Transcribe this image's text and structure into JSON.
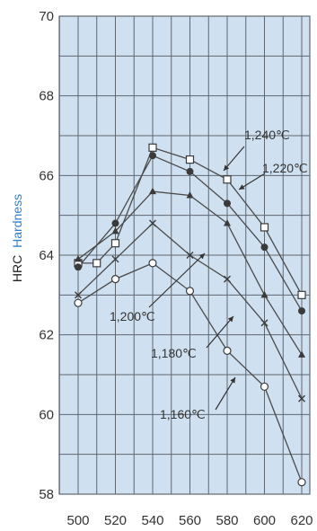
{
  "chart_data": {
    "type": "line",
    "x": [
      500,
      510,
      520,
      540,
      560,
      580,
      600,
      620
    ],
    "xticks": [
      500,
      520,
      540,
      560,
      580,
      600,
      620
    ],
    "xlim": [
      490,
      622
    ],
    "ylim": [
      58,
      70
    ],
    "yticks": [
      58,
      60,
      62,
      64,
      66,
      68,
      70
    ],
    "ylabel_part1": "HRC",
    "ylabel_part2": "Hardness",
    "grid": true,
    "series": [
      {
        "name": "1,240℃",
        "marker": "open-square",
        "values": [
          63.8,
          63.8,
          64.3,
          66.7,
          66.4,
          65.9,
          64.7,
          63.0
        ]
      },
      {
        "name": "1,220℃",
        "marker": "filled-circle",
        "values": [
          63.7,
          null,
          64.8,
          66.5,
          66.1,
          65.3,
          64.2,
          62.6
        ]
      },
      {
        "name": "1,200℃",
        "marker": "filled-triangle",
        "values": [
          63.9,
          null,
          64.6,
          65.6,
          65.5,
          64.8,
          63.0,
          61.5
        ]
      },
      {
        "name": "1,180℃",
        "marker": "x",
        "values": [
          63.0,
          null,
          63.9,
          64.8,
          64.0,
          63.4,
          62.3,
          60.4
        ]
      },
      {
        "name": "1,160℃",
        "marker": "open-circle",
        "values": [
          62.8,
          null,
          63.4,
          63.8,
          63.1,
          61.6,
          60.7,
          58.3
        ]
      }
    ],
    "annotations": [
      {
        "text": "1,240℃",
        "series": 0
      },
      {
        "text": "1,220℃",
        "series": 1
      },
      {
        "text": "1,200℃",
        "series": 2
      },
      {
        "text": "1,180℃",
        "series": 3
      },
      {
        "text": "1,160℃",
        "series": 4
      }
    ],
    "colors": {
      "plot_bg": "#cfe0f0",
      "grid": "#5f6770",
      "series_line": "#4a4a4a",
      "marker_dark": "#3a3a3a",
      "label_text": "#333333",
      "accent_blue": "#2f7fd0"
    }
  }
}
